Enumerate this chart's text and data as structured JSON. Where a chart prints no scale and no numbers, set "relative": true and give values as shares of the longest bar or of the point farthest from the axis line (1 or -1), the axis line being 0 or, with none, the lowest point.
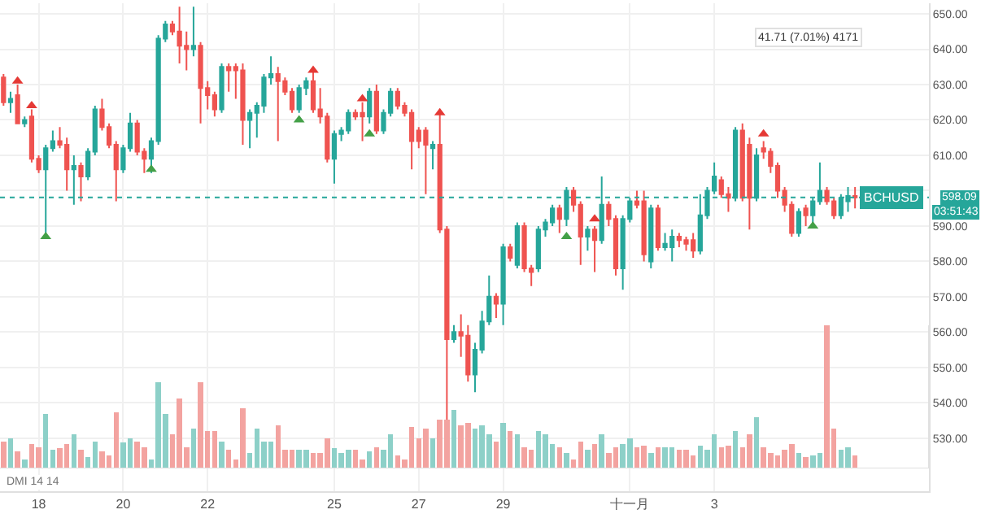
{
  "chart_data": [
    {
      "type": "candlestick",
      "x": [
        "--10-17T04:00",
        "--10-17T08:00",
        "--10-17T12:00",
        "--10-17T16:00",
        "--10-17T20:00",
        "--10-18T00:00",
        "--10-18T04:00",
        "--10-18T08:00",
        "--10-18T12:00",
        "--10-18T16:00",
        "--10-18T20:00",
        "--10-19T00:00",
        "--10-19T04:00",
        "--10-19T08:00",
        "--10-19T12:00",
        "--10-19T16:00",
        "--10-19T20:00",
        "--10-20T00:00",
        "--10-20T04:00",
        "--10-20T08:00",
        "--10-20T12:00",
        "--10-20T16:00",
        "--10-20T20:00",
        "--10-21T00:00",
        "--10-21T04:00",
        "--10-21T08:00",
        "--10-21T12:00",
        "--10-21T16:00",
        "--10-21T20:00",
        "--10-22T00:00",
        "--10-22T04:00",
        "--10-22T08:00",
        "--10-22T12:00",
        "--10-22T16:00",
        "--10-22T20:00",
        "--10-23T00:00",
        "--10-23T04:00",
        "--10-23T08:00",
        "--10-23T12:00",
        "--10-23T16:00",
        "--10-23T20:00",
        "--10-24T00:00",
        "--10-24T04:00",
        "--10-24T08:00",
        "--10-24T12:00",
        "--10-24T16:00",
        "--10-24T20:00",
        "--10-25T00:00",
        "--10-25T04:00",
        "--10-25T08:00",
        "--10-25T12:00",
        "--10-25T16:00",
        "--10-25T20:00",
        "--10-26T00:00",
        "--10-26T04:00",
        "--10-26T08:00",
        "--10-26T12:00",
        "--10-26T16:00",
        "--10-26T20:00",
        "--10-27T00:00",
        "--10-27T04:00",
        "--10-27T08:00",
        "--10-27T12:00",
        "--10-27T16:00",
        "--10-27T20:00",
        "--10-28T00:00",
        "--10-28T04:00",
        "--10-28T08:00",
        "--10-28T12:00",
        "--10-28T16:00",
        "--10-28T20:00",
        "--10-29T00:00",
        "--10-29T04:00",
        "--10-29T08:00",
        "--10-29T12:00",
        "--10-29T16:00",
        "--10-29T20:00",
        "--10-30T00:00",
        "--10-30T04:00",
        "--10-30T08:00",
        "--10-30T12:00",
        "--10-30T16:00",
        "--10-30T20:00",
        "--10-31T00:00",
        "--10-31T04:00",
        "--10-31T08:00",
        "--10-31T12:00",
        "--10-31T16:00",
        "--10-31T20:00",
        "--11-01T00:00",
        "--11-01T04:00",
        "--11-01T08:00",
        "--11-01T12:00",
        "--11-01T16:00",
        "--11-01T20:00",
        "--11-02T00:00",
        "--11-02T04:00",
        "--11-02T08:00",
        "--11-02T12:00",
        "--11-02T16:00",
        "--11-02T20:00",
        "--11-03T00:00",
        "--11-03T04:00",
        "--11-03T08:00",
        "--11-03T12:00",
        "--11-03T16:00",
        "--11-03T20:00",
        "--11-04T00:00",
        "--11-04T04:00",
        "--11-04T08:00",
        "--11-04T12:00",
        "--11-04T16:00",
        "--11-04T20:00",
        "--11-05T00:00",
        "--11-05T04:00",
        "--11-05T08:00",
        "--11-05T12:00",
        "--11-05T16:00",
        "--11-05T20:00",
        "--11-06T00:00",
        "--11-06T04:00",
        "--11-06T08:00"
      ],
      "ohlc": [
        [
          632,
          633,
          624,
          625
        ],
        [
          625,
          628,
          622,
          626
        ],
        [
          627,
          630,
          619,
          619
        ],
        [
          619,
          621,
          618,
          620
        ],
        [
          621,
          623,
          608,
          609
        ],
        [
          609,
          610,
          605,
          606
        ],
        [
          606,
          613,
          588,
          612
        ],
        [
          612,
          617,
          611,
          614
        ],
        [
          614,
          618,
          612,
          613
        ],
        [
          613,
          615,
          600,
          606
        ],
        [
          606,
          610,
          596,
          607
        ],
        [
          607,
          608,
          597,
          604
        ],
        [
          604,
          612,
          603,
          611
        ],
        [
          611,
          624,
          610,
          623
        ],
        [
          623,
          626,
          617,
          618
        ],
        [
          618,
          619,
          612,
          613
        ],
        [
          613,
          614,
          597,
          606
        ],
        [
          606,
          613,
          605,
          612
        ],
        [
          612,
          622,
          611,
          619
        ],
        [
          619,
          620,
          610,
          611
        ],
        [
          611,
          612,
          605,
          609
        ],
        [
          609,
          615,
          605,
          614
        ],
        [
          614,
          644,
          613,
          643
        ],
        [
          643,
          648,
          642,
          647
        ],
        [
          647,
          648,
          644,
          645
        ],
        [
          645,
          652,
          636,
          641
        ],
        [
          641,
          645,
          634,
          640
        ],
        [
          640,
          652,
          638,
          641
        ],
        [
          641,
          642,
          619,
          629
        ],
        [
          629,
          631,
          623,
          627
        ],
        [
          627,
          628,
          621,
          623
        ],
        [
          623,
          636,
          622,
          635
        ],
        [
          635,
          636,
          628,
          634
        ],
        [
          635,
          636,
          626,
          634
        ],
        [
          634,
          636,
          613,
          620
        ],
        [
          620,
          623,
          612,
          622
        ],
        [
          622,
          625,
          615,
          624
        ],
        [
          624,
          633,
          622,
          632
        ],
        [
          632,
          638,
          630,
          633
        ],
        [
          633,
          635,
          614,
          631
        ],
        [
          631,
          632,
          627,
          628
        ],
        [
          628,
          629,
          622,
          623
        ],
        [
          623,
          630,
          622,
          629
        ],
        [
          629,
          632,
          627,
          631
        ],
        [
          631,
          634,
          622,
          623
        ],
        [
          623,
          629,
          619,
          621
        ],
        [
          621,
          622,
          608,
          609
        ],
        [
          609,
          617,
          602,
          616
        ],
        [
          616,
          618,
          614,
          617
        ],
        [
          617,
          623,
          616,
          622
        ],
        [
          622,
          623,
          620,
          621
        ],
        [
          622,
          625,
          614,
          621
        ],
        [
          621,
          629,
          619,
          628
        ],
        [
          628,
          630,
          616,
          617
        ],
        [
          617,
          623,
          616,
          622
        ],
        [
          622,
          629,
          621,
          628
        ],
        [
          628,
          629,
          623,
          624
        ],
        [
          624,
          625,
          621,
          622
        ],
        [
          622,
          623,
          606,
          614
        ],
        [
          617,
          618,
          612,
          614
        ],
        [
          617,
          618,
          599,
          613
        ],
        [
          612,
          614,
          606,
          613
        ],
        [
          613,
          623,
          588,
          589
        ],
        [
          589,
          590,
          534,
          558
        ],
        [
          558,
          562,
          557,
          560
        ],
        [
          560,
          565,
          553,
          559
        ],
        [
          559,
          562,
          546,
          548
        ],
        [
          548,
          557,
          543,
          555
        ],
        [
          555,
          566,
          554,
          563
        ],
        [
          563,
          576,
          562,
          570
        ],
        [
          570,
          571,
          564,
          568
        ],
        [
          568,
          585,
          562,
          584
        ],
        [
          584,
          585,
          580,
          581
        ],
        [
          579,
          591,
          578,
          590
        ],
        [
          590,
          591,
          577,
          578
        ],
        [
          578,
          579,
          573,
          577
        ],
        [
          578,
          590,
          577,
          589
        ],
        [
          589,
          592,
          587,
          591
        ],
        [
          591,
          596,
          590,
          595
        ],
        [
          595,
          596,
          588,
          592
        ],
        [
          592,
          601,
          590,
          600
        ],
        [
          600,
          601,
          594,
          596
        ],
        [
          596,
          597,
          579,
          587
        ],
        [
          587,
          590,
          583,
          589
        ],
        [
          589,
          590,
          577,
          586
        ],
        [
          586,
          604,
          585,
          596
        ],
        [
          596,
          597,
          590,
          592
        ],
        [
          592,
          593,
          576,
          578
        ],
        [
          578,
          593,
          572,
          592
        ],
        [
          592,
          598,
          591,
          597
        ],
        [
          597,
          600,
          595,
          596
        ],
        [
          597,
          600,
          580,
          582
        ],
        [
          580,
          596,
          578,
          595
        ],
        [
          595,
          596,
          583,
          584
        ],
        [
          584,
          588,
          583,
          585
        ],
        [
          584,
          589,
          580,
          587
        ],
        [
          587,
          588,
          584,
          586
        ],
        [
          586,
          587,
          583,
          585
        ],
        [
          586,
          588,
          581,
          583
        ],
        [
          583,
          599,
          582,
          593
        ],
        [
          593,
          601,
          592,
          600
        ],
        [
          600,
          608,
          599,
          604
        ],
        [
          603,
          604,
          598,
          599
        ],
        [
          599,
          601,
          594,
          598
        ],
        [
          598,
          618,
          597,
          617
        ],
        [
          617,
          619,
          597,
          598
        ],
        [
          613,
          615,
          589,
          598
        ],
        [
          598,
          612,
          597,
          610
        ],
        [
          612,
          614,
          609,
          611
        ],
        [
          611,
          612,
          605,
          607
        ],
        [
          607,
          608,
          598,
          600
        ],
        [
          600,
          601,
          594,
          596
        ],
        [
          596,
          597,
          587,
          588
        ],
        [
          588,
          595,
          587,
          594
        ],
        [
          595,
          596,
          590,
          593
        ],
        [
          593,
          598,
          590,
          597
        ],
        [
          597,
          608,
          596,
          600
        ],
        [
          600,
          601,
          596,
          597
        ],
        [
          597,
          598,
          592,
          593
        ],
        [
          593,
          599,
          592,
          598
        ],
        [
          597,
          601,
          594,
          598.5
        ],
        [
          598.5,
          601,
          595,
          598.09
        ]
      ],
      "colors": [
        "#ef5350",
        "#26a69a",
        "#ef5350",
        "#26a69a",
        "#ef5350",
        "#ef5350",
        "#26a69a",
        "#26a69a",
        "#ef5350",
        "#ef5350",
        "#26a69a",
        "#ef5350",
        "#26a69a",
        "#26a69a",
        "#ef5350",
        "#ef5350",
        "#ef5350",
        "#26a69a",
        "#26a69a",
        "#ef5350",
        "#ef5350",
        "#26a69a",
        "#26a69a",
        "#26a69a",
        "#ef5350",
        "#ef5350",
        "#ef5350",
        "#26a69a",
        "#ef5350",
        "#ef5350",
        "#ef5350",
        "#26a69a",
        "#ef5350",
        "#ef5350",
        "#ef5350",
        "#26a69a",
        "#26a69a",
        "#26a69a",
        "#26a69a",
        "#ef5350",
        "#ef5350",
        "#ef5350",
        "#26a69a",
        "#26a69a",
        "#ef5350",
        "#ef5350",
        "#ef5350",
        "#26a69a",
        "#26a69a",
        "#26a69a",
        "#ef5350",
        "#ef5350",
        "#26a69a",
        "#ef5350",
        "#26a69a",
        "#26a69a",
        "#ef5350",
        "#ef5350",
        "#ef5350",
        "#ef5350",
        "#ef5350",
        "#26a69a",
        "#ef5350",
        "#ef5350",
        "#26a69a",
        "#ef5350",
        "#ef5350",
        "#26a69a",
        "#26a69a",
        "#26a69a",
        "#ef5350",
        "#26a69a",
        "#ef5350",
        "#26a69a",
        "#ef5350",
        "#ef5350",
        "#26a69a",
        "#26a69a",
        "#26a69a",
        "#ef5350",
        "#26a69a",
        "#ef5350",
        "#ef5350",
        "#26a69a",
        "#ef5350",
        "#26a69a",
        "#ef5350",
        "#ef5350",
        "#26a69a",
        "#26a69a",
        "#ef5350",
        "#ef5350",
        "#26a69a",
        "#ef5350",
        "#26a69a",
        "#26a69a",
        "#ef5350",
        "#ef5350",
        "#ef5350",
        "#26a69a",
        "#26a69a",
        "#26a69a",
        "#ef5350",
        "#ef5350",
        "#26a69a",
        "#ef5350",
        "#ef5350",
        "#26a69a",
        "#ef5350",
        "#ef5350",
        "#ef5350",
        "#ef5350",
        "#ef5350",
        "#26a69a",
        "#ef5350",
        "#26a69a",
        "#26a69a",
        "#ef5350",
        "#ef5350",
        "#26a69a",
        "#26a69a",
        "#ef5350"
      ],
      "series": [
        {
          "type": "scatter",
          "marker": "triangle",
          "color": "#43a047",
          "x": [
            "--10-18T04:00",
            "--10-20T16:00",
            "--10-24T04:00",
            "--10-25T20:00",
            "--10-30T12:00",
            "--11-05T08:00"
          ],
          "values": [
            587,
            606,
            620,
            616,
            587,
            590
          ]
        },
        {
          "type": "scatter",
          "marker": "triangle",
          "color": "#e53935",
          "x": [
            "--10-17T12:00",
            "--10-17T20:00",
            "--10-24T12:00",
            "--10-25T16:00",
            "--10-27T12:00",
            "--10-31T04:00",
            "--11-04T04:00"
          ],
          "values": [
            631,
            624,
            634,
            626,
            622,
            592,
            616
          ]
        }
      ],
      "xlim": [
        "--10-17T02:00",
        "--11-08T02:00"
      ],
      "xticks": [
        {
          "value": "--10-18",
          "label": "18"
        },
        {
          "value": "--10-20",
          "label": "20"
        },
        {
          "value": "--10-22",
          "label": "22"
        },
        {
          "value": "--10-25",
          "label": "25"
        },
        {
          "value": "--10-27",
          "label": "27"
        },
        {
          "value": "--10-29",
          "label": "29"
        },
        {
          "value": "--11-01",
          "label": "十一月"
        },
        {
          "value": "--11-03",
          "label": "3"
        }
      ],
      "ylim": [
        515,
        653
      ],
      "yticks": [
        {
          "value": 530,
          "label": "530.00"
        },
        {
          "value": 540,
          "label": "540.00"
        },
        {
          "value": 550,
          "label": "550.00"
        },
        {
          "value": 560,
          "label": "560.00"
        },
        {
          "value": 570,
          "label": "570.00"
        },
        {
          "value": 580,
          "label": "580.00"
        },
        {
          "value": 590,
          "label": "590.00"
        },
        {
          "value": 600,
          "label": null
        },
        {
          "value": 610,
          "label": "610.00"
        },
        {
          "value": 620,
          "label": "620.00"
        },
        {
          "value": 630,
          "label": "630.00"
        },
        {
          "value": 640,
          "label": "640.00"
        },
        {
          "value": 650,
          "label": "650.00"
        }
      ],
      "ref_lines": [
        {
          "axis": "y",
          "value": 598.09,
          "label": "BCHUSD",
          "color": "#26a69a",
          "line_style": "dotted"
        }
      ],
      "annotations": [
        "DMI 14 14",
        "03:51:43",
        "41.71 (7.01%) 4171",
        "598.09"
      ],
      "grid": true
    },
    {
      "type": "bar",
      "relative": true,
      "tick_labels": false,
      "x": [
        "--10-17T04:00",
        "--10-17T08:00",
        "--10-17T12:00",
        "--10-17T16:00",
        "--10-17T20:00",
        "--10-18T00:00",
        "--10-18T04:00",
        "--10-18T08:00",
        "--10-18T12:00",
        "--10-18T16:00",
        "--10-18T20:00",
        "--10-19T00:00",
        "--10-19T04:00",
        "--10-19T08:00",
        "--10-19T12:00",
        "--10-19T16:00",
        "--10-19T20:00",
        "--10-20T00:00",
        "--10-20T04:00",
        "--10-20T08:00",
        "--10-20T12:00",
        "--10-20T16:00",
        "--10-20T20:00",
        "--10-21T00:00",
        "--10-21T04:00",
        "--10-21T08:00",
        "--10-21T12:00",
        "--10-21T16:00",
        "--10-21T20:00",
        "--10-22T00:00",
        "--10-22T04:00",
        "--10-22T08:00",
        "--10-22T12:00",
        "--10-22T16:00",
        "--10-22T20:00",
        "--10-23T00:00",
        "--10-23T04:00",
        "--10-23T08:00",
        "--10-23T12:00",
        "--10-23T16:00",
        "--10-23T20:00",
        "--10-24T00:00",
        "--10-24T04:00",
        "--10-24T08:00",
        "--10-24T12:00",
        "--10-24T16:00",
        "--10-24T20:00",
        "--10-25T00:00",
        "--10-25T04:00",
        "--10-25T08:00",
        "--10-25T12:00",
        "--10-25T16:00",
        "--10-25T20:00",
        "--10-26T00:00",
        "--10-26T04:00",
        "--10-26T08:00",
        "--10-26T12:00",
        "--10-26T16:00",
        "--10-26T20:00",
        "--10-27T00:00",
        "--10-27T04:00",
        "--10-27T08:00",
        "--10-27T12:00",
        "--10-27T16:00",
        "--10-27T20:00",
        "--10-28T00:00",
        "--10-28T04:00",
        "--10-28T08:00",
        "--10-28T12:00",
        "--10-28T16:00",
        "--10-28T20:00",
        "--10-29T00:00",
        "--10-29T04:00",
        "--10-29T08:00",
        "--10-29T12:00",
        "--10-29T16:00",
        "--10-29T20:00",
        "--10-30T00:00",
        "--10-30T04:00",
        "--10-30T08:00",
        "--10-30T12:00",
        "--10-30T16:00",
        "--10-30T20:00",
        "--10-31T00:00",
        "--10-31T04:00",
        "--10-31T08:00",
        "--10-31T12:00",
        "--10-31T16:00",
        "--10-31T20:00",
        "--11-01T00:00",
        "--11-01T04:00",
        "--11-01T08:00",
        "--11-01T12:00",
        "--11-01T16:00",
        "--11-01T20:00",
        "--11-02T00:00",
        "--11-02T04:00",
        "--11-02T08:00",
        "--11-02T12:00",
        "--11-02T16:00",
        "--11-02T20:00",
        "--11-03T00:00",
        "--11-03T04:00",
        "--11-03T08:00",
        "--11-03T12:00",
        "--11-03T16:00",
        "--11-03T20:00",
        "--11-04T00:00",
        "--11-04T04:00",
        "--11-04T08:00",
        "--11-04T12:00",
        "--11-04T16:00",
        "--11-04T20:00",
        "--11-05T00:00",
        "--11-05T04:00",
        "--11-05T08:00",
        "--11-05T12:00",
        "--11-05T16:00",
        "--11-05T20:00",
        "--11-06T00:00",
        "--11-06T04:00",
        "--11-06T08:00"
      ],
      "xlim": [
        "--10-17T02:00",
        "--11-08T02:00"
      ],
      "values": [
        0.19,
        0.21,
        0.12,
        0.06,
        0.17,
        0.15,
        0.38,
        0.13,
        0.14,
        0.17,
        0.24,
        0.13,
        0.08,
        0.19,
        0.12,
        0.09,
        0.39,
        0.18,
        0.21,
        0.19,
        0.15,
        0.06,
        0.6,
        0.38,
        0.24,
        0.49,
        0.15,
        0.28,
        0.6,
        0.26,
        0.26,
        0.19,
        0.13,
        0.06,
        0.42,
        0.11,
        0.28,
        0.19,
        0.19,
        0.3,
        0.13,
        0.13,
        0.13,
        0.13,
        0.11,
        0.11,
        0.21,
        0.14,
        0.11,
        0.13,
        0.13,
        0.06,
        0.12,
        0.15,
        0.13,
        0.24,
        0.09,
        0.06,
        0.29,
        0.21,
        0.28,
        0.21,
        0.34,
        0.34,
        0.41,
        0.3,
        0.32,
        0.28,
        0.3,
        0.24,
        0.19,
        0.32,
        0.26,
        0.24,
        0.15,
        0.13,
        0.26,
        0.24,
        0.17,
        0.15,
        0.11,
        0.06,
        0.19,
        0.13,
        0.17,
        0.24,
        0.11,
        0.15,
        0.17,
        0.21,
        0.15,
        0.16,
        0.11,
        0.15,
        0.15,
        0.15,
        0.13,
        0.13,
        0.09,
        0.16,
        0.13,
        0.24,
        0.15,
        0.16,
        0.26,
        0.15,
        0.24,
        0.36,
        0.15,
        0.11,
        0.09,
        0.13,
        0.17,
        0.11,
        0.08,
        0.09,
        0.11,
        1,
        0.28,
        0.13,
        0.15,
        0.09
      ],
      "colors": [
        "#f3a3a0",
        "#8dd0c8",
        "#f3a3a0",
        "#8dd0c8",
        "#f3a3a0",
        "#f3a3a0",
        "#8dd0c8",
        "#8dd0c8",
        "#f3a3a0",
        "#f3a3a0",
        "#8dd0c8",
        "#f3a3a0",
        "#8dd0c8",
        "#8dd0c8",
        "#f3a3a0",
        "#f3a3a0",
        "#f3a3a0",
        "#8dd0c8",
        "#8dd0c8",
        "#f3a3a0",
        "#f3a3a0",
        "#8dd0c8",
        "#8dd0c8",
        "#8dd0c8",
        "#f3a3a0",
        "#f3a3a0",
        "#f3a3a0",
        "#8dd0c8",
        "#f3a3a0",
        "#f3a3a0",
        "#f3a3a0",
        "#8dd0c8",
        "#f3a3a0",
        "#f3a3a0",
        "#f3a3a0",
        "#8dd0c8",
        "#8dd0c8",
        "#8dd0c8",
        "#8dd0c8",
        "#f3a3a0",
        "#f3a3a0",
        "#f3a3a0",
        "#8dd0c8",
        "#8dd0c8",
        "#f3a3a0",
        "#f3a3a0",
        "#f3a3a0",
        "#8dd0c8",
        "#8dd0c8",
        "#8dd0c8",
        "#f3a3a0",
        "#f3a3a0",
        "#8dd0c8",
        "#f3a3a0",
        "#8dd0c8",
        "#8dd0c8",
        "#f3a3a0",
        "#f3a3a0",
        "#f3a3a0",
        "#f3a3a0",
        "#f3a3a0",
        "#8dd0c8",
        "#f3a3a0",
        "#f3a3a0",
        "#8dd0c8",
        "#f3a3a0",
        "#f3a3a0",
        "#8dd0c8",
        "#8dd0c8",
        "#8dd0c8",
        "#f3a3a0",
        "#8dd0c8",
        "#f3a3a0",
        "#8dd0c8",
        "#f3a3a0",
        "#f3a3a0",
        "#8dd0c8",
        "#8dd0c8",
        "#8dd0c8",
        "#f3a3a0",
        "#8dd0c8",
        "#f3a3a0",
        "#f3a3a0",
        "#8dd0c8",
        "#f3a3a0",
        "#8dd0c8",
        "#f3a3a0",
        "#f3a3a0",
        "#8dd0c8",
        "#8dd0c8",
        "#f3a3a0",
        "#f3a3a0",
        "#8dd0c8",
        "#f3a3a0",
        "#8dd0c8",
        "#8dd0c8",
        "#f3a3a0",
        "#f3a3a0",
        "#f3a3a0",
        "#8dd0c8",
        "#8dd0c8",
        "#8dd0c8",
        "#f3a3a0",
        "#f3a3a0",
        "#8dd0c8",
        "#f3a3a0",
        "#f3a3a0",
        "#8dd0c8",
        "#f3a3a0",
        "#f3a3a0",
        "#f3a3a0",
        "#f3a3a0",
        "#f3a3a0",
        "#8dd0c8",
        "#f3a3a0",
        "#8dd0c8",
        "#8dd0c8",
        "#f3a3a0",
        "#f3a3a0",
        "#8dd0c8",
        "#8dd0c8",
        "#f3a3a0"
      ]
    }
  ]
}
